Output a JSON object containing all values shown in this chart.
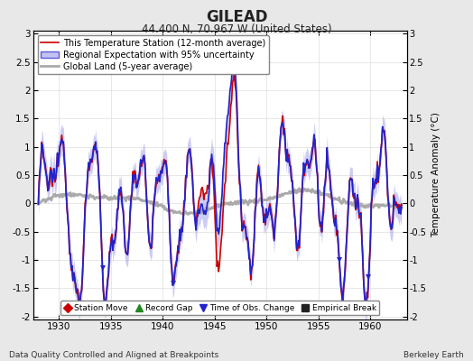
{
  "title": "GILEAD",
  "subtitle": "44.400 N, 70.967 W (United States)",
  "ylabel": "Temperature Anomaly (°C)",
  "footer_left": "Data Quality Controlled and Aligned at Breakpoints",
  "footer_right": "Berkeley Earth",
  "xlim": [
    1927.5,
    1963.5
  ],
  "ylim": [
    -2.05,
    3.05
  ],
  "yticks": [
    -2,
    -1.5,
    -1,
    -0.5,
    0,
    0.5,
    1,
    1.5,
    2,
    2.5,
    3
  ],
  "xticks": [
    1930,
    1935,
    1940,
    1945,
    1950,
    1955,
    1960
  ],
  "bg_color": "#e8e8e8",
  "plot_bg_color": "#ffffff",
  "regional_color": "#2222cc",
  "regional_uncertainty_color": "#aaaaee",
  "station_color": "#cc0000",
  "global_color": "#aaaaaa",
  "legend_main": [
    {
      "label": "This Temperature Station (12-month average)",
      "color": "#cc0000",
      "lw": 1.2
    },
    {
      "label": "Regional Expectation with 95% uncertainty",
      "color": "#2222cc",
      "lw": 1.2,
      "fill": "#aaaaee"
    },
    {
      "label": "Global Land (5-year average)",
      "color": "#aaaaaa",
      "lw": 2.0
    }
  ],
  "marker_legend": [
    {
      "label": "Station Move",
      "marker": "D",
      "color": "#cc0000"
    },
    {
      "label": "Record Gap",
      "marker": "^",
      "color": "#228822"
    },
    {
      "label": "Time of Obs. Change",
      "marker": "v",
      "color": "#2222cc"
    },
    {
      "label": "Empirical Break",
      "marker": "s",
      "color": "#222222"
    }
  ],
  "grid_color": "#dddddd",
  "seed": 12345
}
